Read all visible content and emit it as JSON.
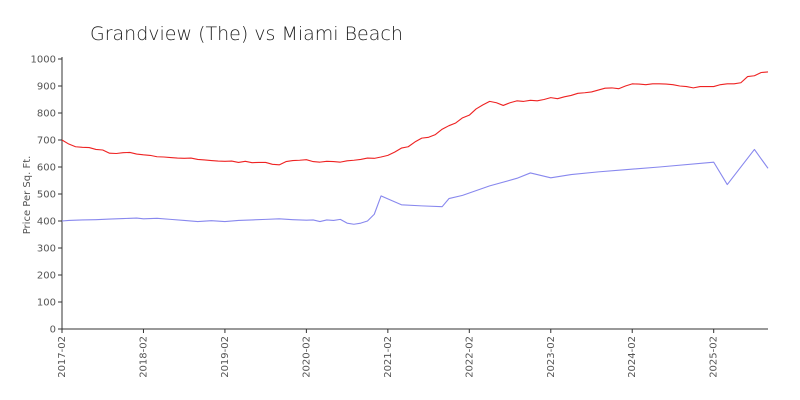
{
  "chart_data": {
    "type": "line",
    "title": "Grandview (The) vs Miami Beach",
    "xlabel": "",
    "ylabel": "Price Per Sq. Ft.",
    "ylim": [
      0,
      1000
    ],
    "yticks": [
      0,
      100,
      200,
      300,
      400,
      500,
      600,
      700,
      800,
      900,
      1000
    ],
    "x_range": [
      "2017-02",
      "2025-10"
    ],
    "xticks": [
      "2017-02",
      "2018-02",
      "2019-02",
      "2020-02",
      "2021-02",
      "2022-02",
      "2023-02",
      "2024-02",
      "2025-02"
    ],
    "grid": false,
    "legend": "none",
    "series": [
      {
        "color": "#ee2222",
        "points": [
          [
            "2017-02",
            700
          ],
          [
            "2017-03",
            685
          ],
          [
            "2017-04",
            675
          ],
          [
            "2017-05",
            673
          ],
          [
            "2017-06",
            672
          ],
          [
            "2017-07",
            665
          ],
          [
            "2017-08",
            663
          ],
          [
            "2017-09",
            651
          ],
          [
            "2017-10",
            650
          ],
          [
            "2017-11",
            653
          ],
          [
            "2017-12",
            654
          ],
          [
            "2018-01",
            648
          ],
          [
            "2018-02",
            645
          ],
          [
            "2018-03",
            643
          ],
          [
            "2018-04",
            638
          ],
          [
            "2018-05",
            637
          ],
          [
            "2018-06",
            635
          ],
          [
            "2018-07",
            633
          ],
          [
            "2018-08",
            632
          ],
          [
            "2018-09",
            633
          ],
          [
            "2018-10",
            628
          ],
          [
            "2018-11",
            626
          ],
          [
            "2018-12",
            624
          ],
          [
            "2019-01",
            622
          ],
          [
            "2019-02",
            621
          ],
          [
            "2019-03",
            622
          ],
          [
            "2019-04",
            617
          ],
          [
            "2019-05",
            621
          ],
          [
            "2019-06",
            616
          ],
          [
            "2019-07",
            617
          ],
          [
            "2019-08",
            617
          ],
          [
            "2019-09",
            610
          ],
          [
            "2019-10",
            608
          ],
          [
            "2019-11",
            620
          ],
          [
            "2019-12",
            624
          ],
          [
            "2020-01",
            625
          ],
          [
            "2020-02",
            627
          ],
          [
            "2020-03",
            620
          ],
          [
            "2020-04",
            618
          ],
          [
            "2020-05",
            621
          ],
          [
            "2020-06",
            620
          ],
          [
            "2020-07",
            618
          ],
          [
            "2020-08",
            623
          ],
          [
            "2020-09",
            625
          ],
          [
            "2020-10",
            628
          ],
          [
            "2020-11",
            633
          ],
          [
            "2020-12",
            632
          ],
          [
            "2021-01",
            637
          ],
          [
            "2021-02",
            643
          ],
          [
            "2021-03",
            655
          ],
          [
            "2021-04",
            670
          ],
          [
            "2021-05",
            675
          ],
          [
            "2021-06",
            693
          ],
          [
            "2021-07",
            707
          ],
          [
            "2021-08",
            710
          ],
          [
            "2021-09",
            720
          ],
          [
            "2021-10",
            740
          ],
          [
            "2021-11",
            753
          ],
          [
            "2021-12",
            763
          ],
          [
            "2022-01",
            782
          ],
          [
            "2022-02",
            792
          ],
          [
            "2022-03",
            815
          ],
          [
            "2022-04",
            830
          ],
          [
            "2022-05",
            843
          ],
          [
            "2022-06",
            838
          ],
          [
            "2022-07",
            828
          ],
          [
            "2022-08",
            838
          ],
          [
            "2022-09",
            845
          ],
          [
            "2022-10",
            843
          ],
          [
            "2022-11",
            847
          ],
          [
            "2022-12",
            845
          ],
          [
            "2023-01",
            850
          ],
          [
            "2023-02",
            857
          ],
          [
            "2023-03",
            853
          ],
          [
            "2023-04",
            860
          ],
          [
            "2023-05",
            865
          ],
          [
            "2023-06",
            873
          ],
          [
            "2023-07",
            875
          ],
          [
            "2023-08",
            878
          ],
          [
            "2023-09",
            885
          ],
          [
            "2023-10",
            892
          ],
          [
            "2023-11",
            893
          ],
          [
            "2023-12",
            890
          ],
          [
            "2024-01",
            900
          ],
          [
            "2024-02",
            908
          ],
          [
            "2024-03",
            907
          ],
          [
            "2024-04",
            905
          ],
          [
            "2024-05",
            908
          ],
          [
            "2024-06",
            908
          ],
          [
            "2024-07",
            907
          ],
          [
            "2024-08",
            905
          ],
          [
            "2024-09",
            900
          ],
          [
            "2024-10",
            898
          ],
          [
            "2024-11",
            893
          ],
          [
            "2024-12",
            898
          ],
          [
            "2025-01",
            898
          ],
          [
            "2025-02",
            898
          ],
          [
            "2025-03",
            905
          ],
          [
            "2025-04",
            908
          ],
          [
            "2025-05",
            908
          ],
          [
            "2025-06",
            912
          ],
          [
            "2025-07",
            935
          ],
          [
            "2025-08",
            938
          ],
          [
            "2025-09",
            950
          ],
          [
            "2025-10",
            952
          ]
        ]
      },
      {
        "color": "#8888ee",
        "points": [
          [
            "2017-02",
            400
          ],
          [
            "2017-03",
            402
          ],
          [
            "2017-05",
            404
          ],
          [
            "2017-07",
            405
          ],
          [
            "2017-09",
            407
          ],
          [
            "2017-11",
            409
          ],
          [
            "2018-01",
            411
          ],
          [
            "2018-02",
            408
          ],
          [
            "2018-04",
            410
          ],
          [
            "2018-06",
            406
          ],
          [
            "2018-08",
            402
          ],
          [
            "2018-10",
            398
          ],
          [
            "2018-12",
            401
          ],
          [
            "2019-02",
            398
          ],
          [
            "2019-04",
            402
          ],
          [
            "2019-06",
            404
          ],
          [
            "2019-08",
            406
          ],
          [
            "2019-10",
            408
          ],
          [
            "2019-12",
            405
          ],
          [
            "2020-02",
            403
          ],
          [
            "2020-03",
            404
          ],
          [
            "2020-04",
            398
          ],
          [
            "2020-05",
            404
          ],
          [
            "2020-06",
            402
          ],
          [
            "2020-07",
            406
          ],
          [
            "2020-08",
            392
          ],
          [
            "2020-09",
            388
          ],
          [
            "2020-10",
            392
          ],
          [
            "2020-11",
            400
          ],
          [
            "2020-12",
            425
          ],
          [
            "2021-01",
            493
          ],
          [
            "2021-02",
            482
          ],
          [
            "2021-04",
            460
          ],
          [
            "2021-07",
            456
          ],
          [
            "2021-10",
            453
          ],
          [
            "2021-11",
            483
          ],
          [
            "2022-01",
            495
          ],
          [
            "2022-05",
            530
          ],
          [
            "2022-09",
            558
          ],
          [
            "2022-11",
            578
          ],
          [
            "2023-02",
            560
          ],
          [
            "2023-05",
            572
          ],
          [
            "2023-09",
            582
          ],
          [
            "2024-01",
            590
          ],
          [
            "2024-06",
            600
          ],
          [
            "2025-02",
            618
          ],
          [
            "2025-04",
            535
          ],
          [
            "2025-08",
            665
          ],
          [
            "2025-10",
            595
          ]
        ]
      }
    ]
  }
}
